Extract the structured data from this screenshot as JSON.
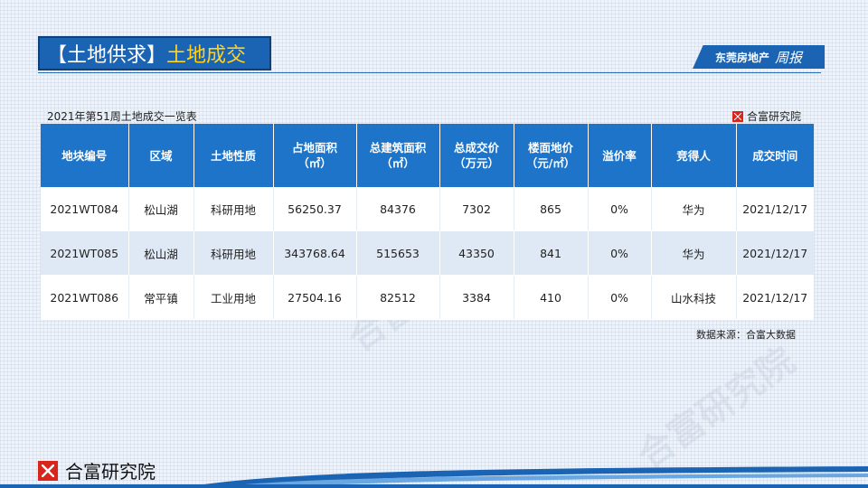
{
  "header": {
    "title_main": "【土地供求】",
    "title_sub": "土地成交",
    "weekly_name": "东莞房地产",
    "weekly_script": "周报"
  },
  "table_caption": "2021年第51周土地成交一览表",
  "brand_small": "合富研究院",
  "table": {
    "headers": [
      {
        "line1": "地块编号",
        "line2": ""
      },
      {
        "line1": "区域",
        "line2": ""
      },
      {
        "line1": "土地性质",
        "line2": ""
      },
      {
        "line1": "占地面积",
        "line2": "（㎡）"
      },
      {
        "line1": "总建筑面积",
        "line2": "（㎡）"
      },
      {
        "line1": "总成交价",
        "line2": "（万元）"
      },
      {
        "line1": "楼面地价",
        "line2": "（元/㎡）"
      },
      {
        "line1": "溢价率",
        "line2": ""
      },
      {
        "line1": "竞得人",
        "line2": ""
      },
      {
        "line1": "成交时间",
        "line2": ""
      }
    ],
    "rows": [
      [
        "2021WT084",
        "松山湖",
        "科研用地",
        "56250.37",
        "84376",
        "7302",
        "865",
        "0%",
        "华为",
        "2021/12/17"
      ],
      [
        "2021WT085",
        "松山湖",
        "科研用地",
        "343768.64",
        "515653",
        "43350",
        "841",
        "0%",
        "华为",
        "2021/12/17"
      ],
      [
        "2021WT086",
        "常平镇",
        "工业用地",
        "27504.16",
        "82512",
        "3384",
        "410",
        "0%",
        "山水科技",
        "2021/12/17"
      ]
    ]
  },
  "source": "数据来源：合富大数据",
  "footer_brand": "合富研究院",
  "watermark": "合富研究院",
  "colors": {
    "brand_blue": "#1b64b4",
    "header_blue": "#1d74c9",
    "title_accent": "#ffd21f",
    "logo_red": "#d9261c"
  }
}
